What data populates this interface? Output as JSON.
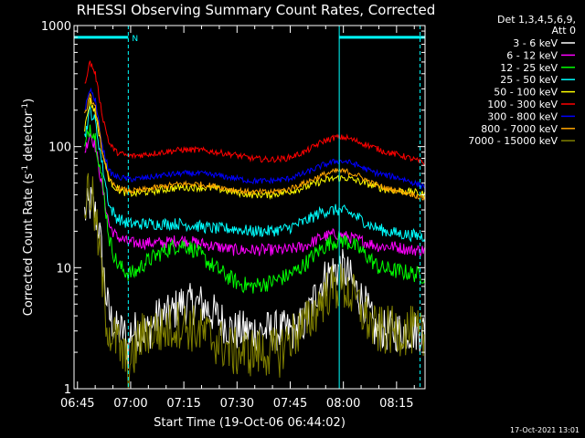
{
  "chart_data": {
    "type": "line",
    "title": "RHESSI Observing Summary Count Rates, Corrected",
    "xlabel": "Start Time (19-Oct-06 06:44:02)",
    "ylabel": "Corrected Count Rate (s",
    "ylabel_sup1": "-1",
    "ylabel_mid": " detector",
    "ylabel_sup2": "-1",
    "ylabel_end": ")",
    "footer": "17-Oct-2021 13:01",
    "x_unit": "minutes since 06:44:02",
    "xlim": [
      0,
      99
    ],
    "ylim": [
      1,
      1000
    ],
    "y_scale": "log",
    "grid": false,
    "xticks": [
      {
        "x": 0.97,
        "label": "06:45"
      },
      {
        "x": 15.97,
        "label": "07:00"
      },
      {
        "x": 30.97,
        "label": "07:15"
      },
      {
        "x": 45.97,
        "label": "07:30"
      },
      {
        "x": 60.97,
        "label": "07:45"
      },
      {
        "x": 75.97,
        "label": "08:00"
      },
      {
        "x": 90.97,
        "label": "08:15"
      }
    ],
    "yticks": [
      {
        "y": 1,
        "label": "1"
      },
      {
        "y": 10,
        "label": "10"
      },
      {
        "y": 100,
        "label": "100"
      },
      {
        "y": 1000,
        "label": "1000"
      }
    ],
    "legend_header": [
      "Det 1,3,4,5,6,9,",
      "Att 0"
    ],
    "legend_position": "right",
    "annotations": {
      "flag_label": "N",
      "flag_bars": [
        [
          0,
          15.3
        ],
        [
          74.8,
          99
        ]
      ],
      "flag_y": 800,
      "vlines_dashed": [
        15.3,
        97.6
      ],
      "vlines_solid": [
        0,
        74.8
      ]
    },
    "series": [
      {
        "name": "3 - 6 keV",
        "color": "#ffffff",
        "noise": 0.5,
        "points": [
          [
            3,
            28
          ],
          [
            5,
            35
          ],
          [
            7,
            22
          ],
          [
            9,
            6
          ],
          [
            10,
            4
          ],
          [
            12,
            3
          ],
          [
            14,
            3
          ],
          [
            15.3,
            2
          ],
          [
            16,
            3
          ],
          [
            18,
            3
          ],
          [
            21,
            3
          ],
          [
            24,
            4
          ],
          [
            27,
            4
          ],
          [
            30,
            5
          ],
          [
            33,
            5
          ],
          [
            36,
            5
          ],
          [
            40,
            4
          ],
          [
            45,
            3
          ],
          [
            50,
            3
          ],
          [
            55,
            3
          ],
          [
            57,
            3
          ],
          [
            60,
            3
          ],
          [
            63,
            3
          ],
          [
            66,
            4
          ],
          [
            69,
            7
          ],
          [
            72,
            9
          ],
          [
            75,
            10
          ],
          [
            77,
            9
          ],
          [
            79,
            7
          ],
          [
            82,
            5
          ],
          [
            85,
            3
          ],
          [
            88,
            3
          ],
          [
            92,
            3
          ],
          [
            96,
            3
          ],
          [
            99,
            3
          ]
        ]
      },
      {
        "name": "6 - 12 keV",
        "color": "#ff00ff",
        "noise": 0.05,
        "points": [
          [
            3,
            90
          ],
          [
            4.5,
            130
          ],
          [
            6,
            100
          ],
          [
            8,
            45
          ],
          [
            10,
            22
          ],
          [
            12,
            18
          ],
          [
            14,
            17
          ],
          [
            15.3,
            16
          ],
          [
            17,
            16
          ],
          [
            20,
            16
          ],
          [
            25,
            16
          ],
          [
            30,
            17
          ],
          [
            35,
            16
          ],
          [
            40,
            15
          ],
          [
            45,
            14
          ],
          [
            50,
            14
          ],
          [
            55,
            14
          ],
          [
            60,
            14
          ],
          [
            65,
            15
          ],
          [
            70,
            18
          ],
          [
            74,
            19
          ],
          [
            77,
            18
          ],
          [
            80,
            17
          ],
          [
            83,
            16
          ],
          [
            86,
            15
          ],
          [
            90,
            15
          ],
          [
            95,
            14
          ],
          [
            99,
            14
          ]
        ]
      },
      {
        "name": "12 - 25 keV",
        "color": "#00ff00",
        "noise": 0.07,
        "points": [
          [
            3,
            95
          ],
          [
            4.5,
            150
          ],
          [
            6,
            120
          ],
          [
            8,
            50
          ],
          [
            10,
            17
          ],
          [
            12,
            11
          ],
          [
            14,
            9.5
          ],
          [
            15.3,
            9
          ],
          [
            17,
            9
          ],
          [
            20,
            11
          ],
          [
            24,
            13
          ],
          [
            28,
            15
          ],
          [
            31,
            15.5
          ],
          [
            34,
            14
          ],
          [
            38,
            11
          ],
          [
            42,
            9
          ],
          [
            46,
            7.5
          ],
          [
            50,
            7
          ],
          [
            55,
            7.5
          ],
          [
            60,
            8.5
          ],
          [
            64,
            10
          ],
          [
            68,
            13
          ],
          [
            72,
            16
          ],
          [
            75,
            17
          ],
          [
            78,
            16
          ],
          [
            82,
            13
          ],
          [
            86,
            10
          ],
          [
            90,
            9.5
          ],
          [
            95,
            9
          ],
          [
            99,
            8.5
          ]
        ]
      },
      {
        "name": "25 - 50 keV",
        "color": "#00ffff",
        "noise": 0.05,
        "points": [
          [
            3,
            120
          ],
          [
            4.5,
            200
          ],
          [
            6,
            160
          ],
          [
            8,
            70
          ],
          [
            10,
            32
          ],
          [
            12,
            26
          ],
          [
            14,
            24
          ],
          [
            15.3,
            23
          ],
          [
            17,
            23
          ],
          [
            20,
            23
          ],
          [
            25,
            23
          ],
          [
            30,
            23
          ],
          [
            35,
            22
          ],
          [
            40,
            21
          ],
          [
            45,
            21
          ],
          [
            50,
            20
          ],
          [
            55,
            20
          ],
          [
            60,
            21
          ],
          [
            65,
            24
          ],
          [
            70,
            29
          ],
          [
            74,
            30
          ],
          [
            77,
            29
          ],
          [
            80,
            26
          ],
          [
            84,
            22
          ],
          [
            88,
            20
          ],
          [
            92,
            19
          ],
          [
            96,
            18.5
          ],
          [
            99,
            18
          ]
        ]
      },
      {
        "name": "50 - 100 keV",
        "color": "#ffff00",
        "noise": 0.03,
        "points": [
          [
            3,
            140
          ],
          [
            4.5,
            240
          ],
          [
            6,
            190
          ],
          [
            8,
            90
          ],
          [
            10,
            52
          ],
          [
            12,
            45
          ],
          [
            14,
            42
          ],
          [
            15.3,
            41
          ],
          [
            17,
            41
          ],
          [
            20,
            42
          ],
          [
            25,
            44
          ],
          [
            30,
            46
          ],
          [
            35,
            46
          ],
          [
            40,
            45
          ],
          [
            45,
            42
          ],
          [
            50,
            40
          ],
          [
            55,
            40
          ],
          [
            60,
            42
          ],
          [
            65,
            46
          ],
          [
            70,
            52
          ],
          [
            74,
            55
          ],
          [
            77,
            55
          ],
          [
            80,
            52
          ],
          [
            84,
            48
          ],
          [
            88,
            44
          ],
          [
            92,
            43
          ],
          [
            96,
            42
          ],
          [
            99,
            40
          ]
        ]
      },
      {
        "name": "100 - 300 keV",
        "color": "#ff0000",
        "noise": 0.025,
        "points": [
          [
            3,
            330
          ],
          [
            4.5,
            500
          ],
          [
            6,
            400
          ],
          [
            8,
            180
          ],
          [
            10,
            105
          ],
          [
            12,
            90
          ],
          [
            14,
            86
          ],
          [
            15.3,
            84
          ],
          [
            17,
            84
          ],
          [
            20,
            86
          ],
          [
            25,
            90
          ],
          [
            30,
            94
          ],
          [
            35,
            94
          ],
          [
            40,
            90
          ],
          [
            45,
            86
          ],
          [
            50,
            80
          ],
          [
            55,
            78
          ],
          [
            60,
            80
          ],
          [
            65,
            90
          ],
          [
            70,
            110
          ],
          [
            74,
            120
          ],
          [
            77,
            118
          ],
          [
            80,
            110
          ],
          [
            84,
            100
          ],
          [
            88,
            90
          ],
          [
            92,
            85
          ],
          [
            96,
            78
          ],
          [
            99,
            72
          ]
        ]
      },
      {
        "name": "300 - 800 keV",
        "color": "#0000ff",
        "noise": 0.025,
        "points": [
          [
            3,
            200
          ],
          [
            4.5,
            300
          ],
          [
            6,
            240
          ],
          [
            8,
            100
          ],
          [
            10,
            62
          ],
          [
            12,
            56
          ],
          [
            14,
            55
          ],
          [
            15.3,
            54
          ],
          [
            17,
            54
          ],
          [
            20,
            55
          ],
          [
            25,
            58
          ],
          [
            30,
            60
          ],
          [
            35,
            60
          ],
          [
            40,
            58
          ],
          [
            45,
            55
          ],
          [
            50,
            52
          ],
          [
            55,
            52
          ],
          [
            60,
            54
          ],
          [
            65,
            60
          ],
          [
            70,
            70
          ],
          [
            74,
            76
          ],
          [
            77,
            75
          ],
          [
            80,
            70
          ],
          [
            84,
            62
          ],
          [
            88,
            58
          ],
          [
            92,
            55
          ],
          [
            96,
            50
          ],
          [
            99,
            47
          ]
        ]
      },
      {
        "name": "800 - 7000 keV",
        "color": "#ffa500",
        "noise": 0.025,
        "points": [
          [
            3,
            180
          ],
          [
            4.5,
            260
          ],
          [
            6,
            210
          ],
          [
            8,
            90
          ],
          [
            10,
            52
          ],
          [
            12,
            46
          ],
          [
            14,
            44
          ],
          [
            15.3,
            43
          ],
          [
            17,
            43
          ],
          [
            20,
            44
          ],
          [
            25,
            47
          ],
          [
            30,
            49
          ],
          [
            35,
            49
          ],
          [
            40,
            47
          ],
          [
            45,
            44
          ],
          [
            50,
            42
          ],
          [
            55,
            42
          ],
          [
            60,
            44
          ],
          [
            65,
            50
          ],
          [
            70,
            58
          ],
          [
            74,
            63
          ],
          [
            77,
            62
          ],
          [
            80,
            58
          ],
          [
            84,
            50
          ],
          [
            88,
            45
          ],
          [
            92,
            43
          ],
          [
            96,
            40
          ],
          [
            99,
            37
          ]
        ]
      },
      {
        "name": "7000 - 15000 keV",
        "color": "#808000",
        "noise": 0.6,
        "points": [
          [
            3,
            30
          ],
          [
            4,
            45
          ],
          [
            5,
            40
          ],
          [
            7,
            15
          ],
          [
            9,
            4
          ],
          [
            10,
            3
          ],
          [
            12,
            2.5
          ],
          [
            15.3,
            1.5
          ],
          [
            16,
            1.5
          ],
          [
            18,
            2.5
          ],
          [
            21,
            3
          ],
          [
            25,
            3
          ],
          [
            30,
            3.5
          ],
          [
            35,
            3
          ],
          [
            40,
            2.5
          ],
          [
            45,
            2
          ],
          [
            50,
            2
          ],
          [
            55,
            2
          ],
          [
            58,
            2
          ],
          [
            60,
            2.5
          ],
          [
            63,
            3
          ],
          [
            66,
            3.5
          ],
          [
            69,
            5
          ],
          [
            72,
            6.5
          ],
          [
            75,
            7
          ],
          [
            77,
            6.5
          ],
          [
            79,
            5.5
          ],
          [
            82,
            4
          ],
          [
            85,
            3
          ],
          [
            88,
            3
          ],
          [
            92,
            3
          ],
          [
            96,
            3
          ],
          [
            99,
            2.5
          ]
        ]
      }
    ]
  }
}
